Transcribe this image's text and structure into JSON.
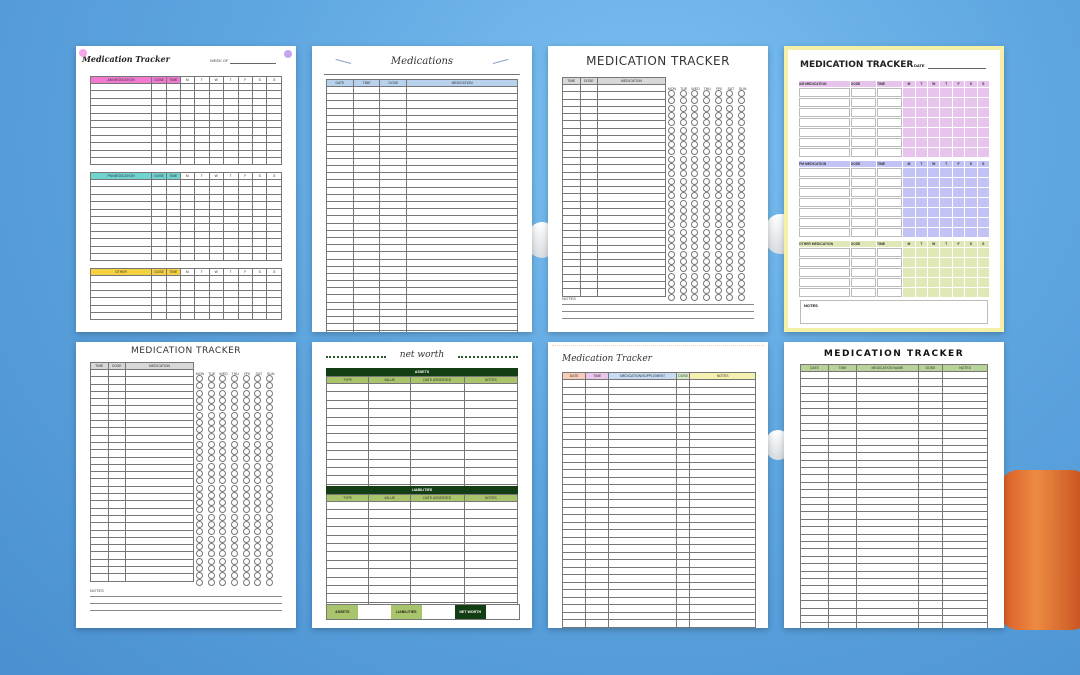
{
  "cards": [
    {
      "title": "Medication Tracker",
      "week_label": "WEEK OF",
      "sections": [
        {
          "headers": [
            "AM MEDICATION",
            "DOSE",
            "TIME",
            "M",
            "T",
            "W",
            "T",
            "F",
            "S",
            "S"
          ],
          "color": "#f07ad0"
        },
        {
          "headers": [
            "PM MEDICATION",
            "DOSE",
            "TIME",
            "M",
            "T",
            "W",
            "T",
            "F",
            "S",
            "S"
          ],
          "color": "#6fd3d0"
        },
        {
          "headers": [
            "OTHER",
            "DOSE",
            "TIME",
            "M",
            "T",
            "W",
            "T",
            "F",
            "S",
            "S"
          ],
          "color": "#f5d040"
        }
      ]
    },
    {
      "title": "Medications",
      "headers": [
        "DATE",
        "TIME",
        "DOSE",
        "MEDICATION"
      ],
      "color": "#b8d2ee"
    },
    {
      "title": "MEDICATION TRACKER",
      "headers": [
        "TIME",
        "DOSE",
        "MEDICATION"
      ],
      "days": [
        "MON",
        "TUE",
        "WED",
        "THU",
        "FRI",
        "SAT",
        "SUN"
      ],
      "notes_label": "NOTES",
      "color": "#d8d8d8"
    },
    {
      "title": "MEDICATION TRACKER",
      "date_label": "DATE",
      "sections": [
        {
          "headers": [
            "AM MEDICATION",
            "DOSE",
            "TIME",
            "M",
            "T",
            "W",
            "T",
            "F",
            "S",
            "S"
          ],
          "color": "#e6c4ec"
        },
        {
          "headers": [
            "PM MEDICATION",
            "DOSE",
            "TIME",
            "M",
            "T",
            "W",
            "T",
            "F",
            "S",
            "S"
          ],
          "color": "#c2c2f4"
        },
        {
          "headers": [
            "OTHER MEDICATION",
            "DOSE",
            "TIME",
            "M",
            "T",
            "W",
            "T",
            "F",
            "S",
            "S"
          ],
          "color": "#dfe8b6"
        }
      ],
      "notes_label": "NOTES",
      "border_color": "#f4f0a8"
    },
    {
      "title": "MEDICATION TRACKER",
      "headers": [
        "TIME",
        "DOSE",
        "MEDICATION"
      ],
      "days": [
        "MON",
        "TUE",
        "WED",
        "THU",
        "FRI",
        "SAT",
        "SUN"
      ],
      "notes_label": "NOTES",
      "color": "#d8d8d8"
    },
    {
      "title": "net worth",
      "assets": {
        "label": "ASSETS",
        "headers": [
          "TYPE",
          "VALUE",
          "DATE ASSESSED",
          "NOTES"
        ]
      },
      "liabilities": {
        "label": "LIABILITIES",
        "headers": [
          "TYPE",
          "VALUE",
          "DATE ASSESSED",
          "NOTES"
        ]
      },
      "footer": [
        "ASSETS",
        "LIABILITIES",
        "NET WORTH"
      ],
      "dark_color": "#133d12",
      "light_color": "#a9c46a"
    },
    {
      "title": "Medication Tracker",
      "headers": [
        "DATE",
        "TIME",
        "MEDICATION/SUPPLEMENT",
        "DOSE",
        "NOTES"
      ],
      "colors": [
        "#f7cdb8",
        "#ecc4ec",
        "#c6dcf2",
        "#d6ecc6",
        "#f4f0b0"
      ]
    },
    {
      "title": "MEDICATION TRACKER",
      "headers": [
        "DATE",
        "TIME",
        "MEDICATION NAME",
        "DOSE",
        "NOTES"
      ],
      "color": "#b7d39a"
    }
  ]
}
